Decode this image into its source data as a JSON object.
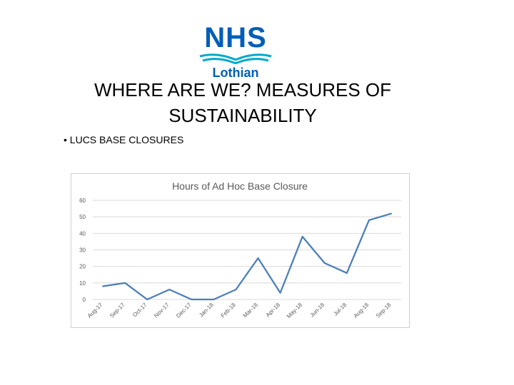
{
  "logo": {
    "name": "NHS",
    "region": "Lothian",
    "brand_color": "#005EB8"
  },
  "slide": {
    "title": "WHERE ARE WE? MEASURES OF SUSTAINABILITY",
    "bullet": "LUCS BASE CLOSURES"
  },
  "chart_data": {
    "type": "line",
    "title": "Hours of Ad Hoc Base Closure",
    "xlabel": "",
    "ylabel": "",
    "ylim": [
      0,
      60
    ],
    "yticks": [
      0,
      10,
      20,
      30,
      40,
      50,
      60
    ],
    "categories": [
      "Aug-17",
      "Sep-17",
      "Oct-17",
      "Nov-17",
      "Dec-17",
      "Jan-18",
      "Feb-18",
      "Mar-18",
      "Apr-18",
      "May-18",
      "Jun-18",
      "Jul-18",
      "Aug-18",
      "Sep-18"
    ],
    "series": [
      {
        "values": [
          8,
          10,
          0,
          6,
          0,
          0,
          6,
          25,
          4,
          38,
          22,
          16,
          48,
          52
        ]
      }
    ],
    "grid": true,
    "legend": "none",
    "line_color": "#4A7EBB",
    "grid_color": "#d9d9d9"
  }
}
